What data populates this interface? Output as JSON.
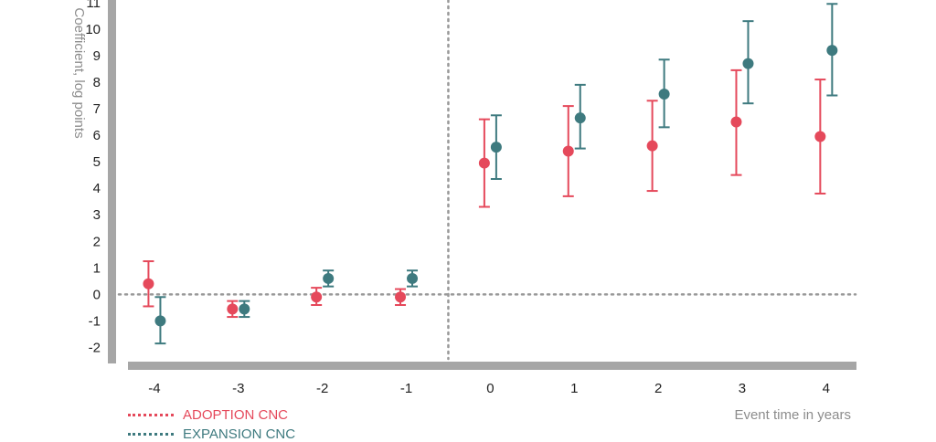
{
  "chart_data": {
    "type": "scatter",
    "title": "",
    "xlabel": "Event time in years",
    "ylabel": "Coefficient, log points",
    "x": [
      -4,
      -3,
      -2,
      -1,
      0,
      1,
      2,
      3,
      4
    ],
    "x_tick_labels": [
      "-4",
      "-3",
      "-2",
      "-1",
      "0",
      "1",
      "2",
      "3",
      "4"
    ],
    "y_ticks": [
      -2,
      -1,
      0,
      1,
      2,
      3,
      4,
      5,
      6,
      7,
      8,
      9,
      10,
      11
    ],
    "y_tick_labels": [
      "-2",
      "-1",
      "0",
      "1",
      "2",
      "3",
      "4",
      "5",
      "6",
      "7",
      "8",
      "9",
      "10",
      "11"
    ],
    "ylim": [
      -2.5,
      11.2
    ],
    "xlim": [
      -4.5,
      4.35
    ],
    "reference_lines": {
      "y": 0,
      "x": -0.5
    },
    "grid": false,
    "legend_position": "bottom-left",
    "series": [
      {
        "name": "ADOPTION CNC",
        "color": "#e5495b",
        "values": [
          0.4,
          -0.55,
          -0.1,
          -0.1,
          4.95,
          5.4,
          5.6,
          6.5,
          5.95
        ],
        "ci_low": [
          -0.45,
          -0.85,
          -0.4,
          -0.4,
          3.3,
          3.7,
          3.9,
          4.5,
          3.8
        ],
        "ci_high": [
          1.25,
          -0.25,
          0.25,
          0.2,
          6.6,
          7.1,
          7.3,
          8.45,
          8.1
        ]
      },
      {
        "name": "EXPANSION CNC",
        "color": "#3e7a7f",
        "values": [
          -1.0,
          -0.55,
          0.6,
          0.6,
          5.55,
          6.65,
          7.55,
          8.7,
          9.2
        ],
        "ci_low": [
          -1.85,
          -0.85,
          0.3,
          0.3,
          4.35,
          5.5,
          6.3,
          7.2,
          7.5
        ],
        "ci_high": [
          -0.1,
          -0.25,
          0.9,
          0.9,
          6.75,
          7.9,
          8.85,
          10.3,
          10.95
        ]
      }
    ]
  }
}
